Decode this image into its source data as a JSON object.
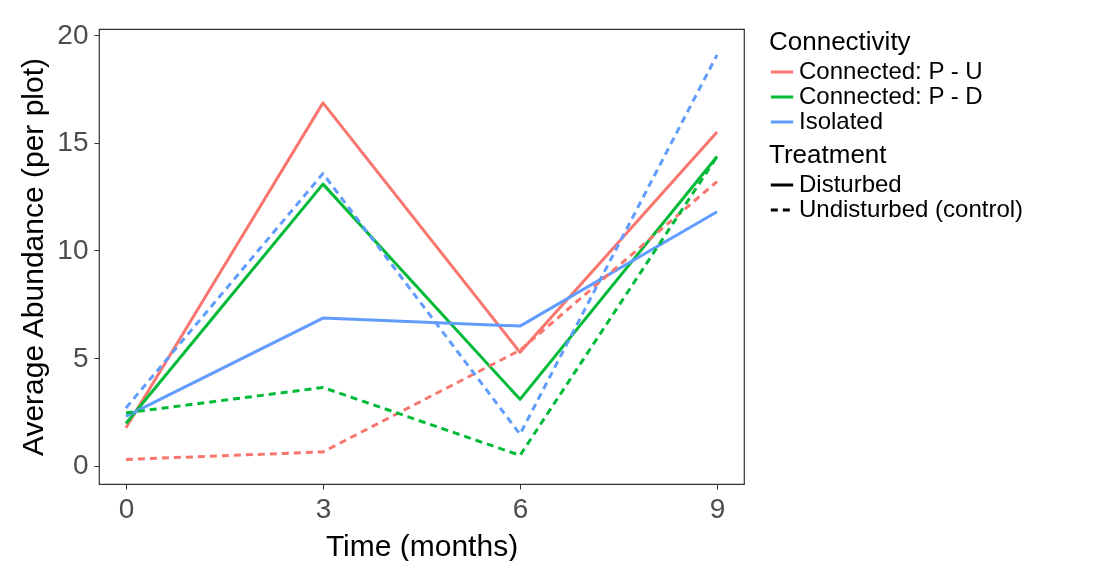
{
  "chart_data": {
    "type": "line",
    "xlabel": "Time (months)",
    "ylabel": "Average Abundance (per plot)",
    "legend_title": "Connectivity",
    "x": [
      0,
      3,
      6,
      9
    ],
    "xlim": [
      -0.41,
      9.41
    ],
    "xticks": [
      0,
      3,
      6,
      9
    ],
    "ylim": [
      -0.84,
      20.28
    ],
    "yticks": [
      0,
      5,
      10,
      15,
      20
    ],
    "grid": false,
    "legend": "right",
    "marker": "none",
    "annotations": [
      "Treatment",
      "Disturbed",
      "Undisturbed (control)"
    ],
    "series": [
      {
        "name": "Connected: P - U",
        "color": "#f8766d",
        "line_style": "solid",
        "values": [
          1.77,
          16.85,
          5.27,
          15.5
        ]
      },
      {
        "name": "Connected: P - D",
        "color": "#00ba38",
        "line_style": "solid",
        "values": [
          1.97,
          13.08,
          3.09,
          14.36
        ]
      },
      {
        "name": "Isolated",
        "color": "#619cff",
        "line_style": "solid",
        "values": [
          2.3,
          6.86,
          6.49,
          11.8
        ]
      },
      {
        "color": "#f8766d",
        "line_style": "dashed",
        "values": [
          0.3,
          0.65,
          5.37,
          13.2
        ]
      },
      {
        "color": "#00ba38",
        "line_style": "dashed",
        "values": [
          2.46,
          3.64,
          0.49,
          14.36
        ]
      },
      {
        "color": "#619cff",
        "line_style": "dashed",
        "values": [
          2.69,
          13.57,
          1.47,
          19.08
        ]
      }
    ]
  }
}
